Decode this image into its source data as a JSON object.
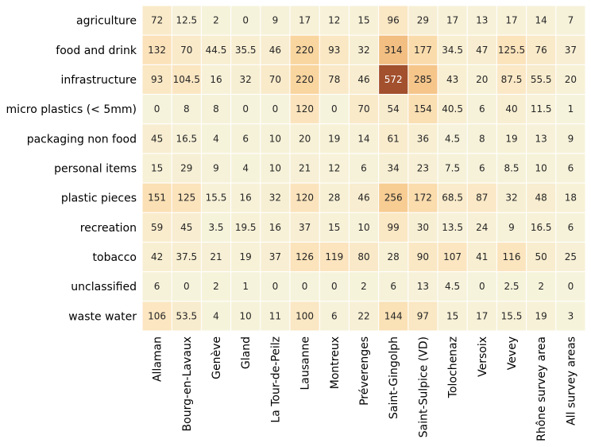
{
  "chart_data": {
    "type": "heatmap",
    "title": "",
    "xlabel": "",
    "ylabel": "",
    "rows": [
      "agriculture",
      "food and drink",
      "infrastructure",
      "micro plastics (< 5mm)",
      "packaging non food",
      "personal items",
      "plastic pieces",
      "recreation",
      "tobacco",
      "unclassified",
      "waste water"
    ],
    "columns": [
      "Allaman",
      "Bourg-en-Lavaux",
      "Genève",
      "Gland",
      "La Tour-de-Peilz",
      "Lausanne",
      "Montreux",
      "Préverenges",
      "Saint-Gingolph",
      "Saint-Sulpice (VD)",
      "Tolochenaz",
      "Versoix",
      "Vevey",
      "Rhône survey area",
      "All survey areas"
    ],
    "values": [
      [
        72,
        12.5,
        2,
        0,
        9,
        17,
        12,
        15,
        96,
        29,
        17,
        13,
        17,
        14,
        7
      ],
      [
        132,
        70,
        44.5,
        35.5,
        46,
        220,
        93,
        32,
        314,
        177,
        34.5,
        47,
        125.5,
        76,
        37
      ],
      [
        93,
        104.5,
        16,
        32,
        70,
        220,
        78,
        46,
        572,
        285,
        43,
        20,
        87.5,
        55.5,
        20
      ],
      [
        0,
        8,
        8,
        0,
        0,
        120,
        0,
        70,
        54,
        154,
        40.5,
        6,
        40,
        11.5,
        1
      ],
      [
        45,
        16.5,
        4,
        6,
        10,
        20,
        19,
        14,
        61,
        36,
        4.5,
        8,
        19,
        13,
        9
      ],
      [
        15,
        29,
        9,
        4,
        10,
        21,
        12,
        6,
        34,
        23,
        7.5,
        6,
        8.5,
        10,
        6
      ],
      [
        151,
        125,
        15.5,
        16,
        32,
        120,
        28,
        46,
        256,
        172,
        68.5,
        87,
        32,
        48,
        18
      ],
      [
        59,
        45,
        3.5,
        19.5,
        16,
        37,
        15,
        10,
        99,
        30,
        13.5,
        24,
        9,
        16.5,
        6
      ],
      [
        42,
        37.5,
        21,
        19,
        37,
        126,
        119,
        80,
        28,
        90,
        107,
        41,
        116,
        50,
        25
      ],
      [
        6,
        0,
        2,
        1,
        0,
        0,
        0,
        2,
        6,
        13,
        4.5,
        0,
        2.5,
        2,
        0
      ],
      [
        106,
        53.5,
        4,
        10,
        11,
        100,
        6,
        22,
        144,
        97,
        15,
        17,
        15.5,
        19,
        3
      ]
    ],
    "colormap": [
      "#f6f3dc",
      "#fbe5bf",
      "#f9d49c",
      "#f0b678",
      "#dc8c55",
      "#a2502d"
    ],
    "color_scale_max": 572,
    "cell_border_color": "#ffffff",
    "text_color_light": "#ffffff",
    "text_color_dark": "#262626",
    "colorbar": false,
    "grid": false
  }
}
